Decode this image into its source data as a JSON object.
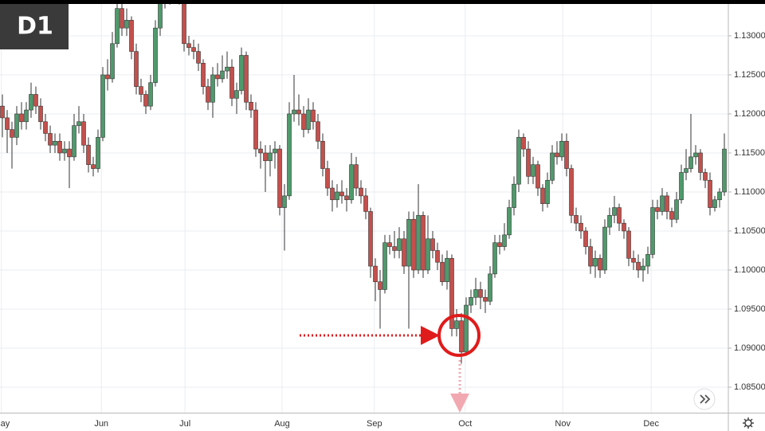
{
  "chart_data": {
    "type": "candlestick",
    "timeframe": "D1",
    "up_color": "#4f9a6b",
    "down_color": "#c4504c",
    "grid": true,
    "ylim": [
      1.08173,
      1.13459
    ],
    "yticks": [
      {
        "value": 1.085,
        "label": "1.08500"
      },
      {
        "value": 1.09,
        "label": "1.09000"
      },
      {
        "value": 1.095,
        "label": "1.09500"
      },
      {
        "value": 1.1,
        "label": "1.10000"
      },
      {
        "value": 1.105,
        "label": "1.10500"
      },
      {
        "value": 1.11,
        "label": "1.11000"
      },
      {
        "value": 1.115,
        "label": "1.11500"
      },
      {
        "value": 1.12,
        "label": "1.12000"
      },
      {
        "value": 1.125,
        "label": "1.12500"
      },
      {
        "value": 1.13,
        "label": "1.13000"
      }
    ],
    "xlim": [
      -0.5,
      151.5
    ],
    "xticks": [
      {
        "value": -0.2,
        "label": "May"
      },
      {
        "value": 20.7,
        "label": "Jun"
      },
      {
        "value": 38.2,
        "label": "Jul"
      },
      {
        "value": 58.5,
        "label": "Aug"
      },
      {
        "value": 77.8,
        "label": "Sep"
      },
      {
        "value": 96.8,
        "label": "Oct"
      },
      {
        "value": 117.2,
        "label": "Nov"
      },
      {
        "value": 135.7,
        "label": "Dec"
      }
    ],
    "ohlc": [
      [
        1.121,
        1.1225,
        1.117,
        1.1195
      ],
      [
        1.1195,
        1.1205,
        1.115,
        1.118
      ],
      [
        1.118,
        1.119,
        1.113,
        1.117
      ],
      [
        1.117,
        1.121,
        1.116,
        1.12
      ],
      [
        1.12,
        1.1215,
        1.118,
        1.119
      ],
      [
        1.119,
        1.1215,
        1.118,
        1.1205
      ],
      [
        1.1205,
        1.124,
        1.1195,
        1.1225
      ],
      [
        1.1225,
        1.1235,
        1.12,
        1.121
      ],
      [
        1.121,
        1.122,
        1.118,
        1.119
      ],
      [
        1.119,
        1.12,
        1.1165,
        1.1175
      ],
      [
        1.1175,
        1.1185,
        1.115,
        1.116
      ],
      [
        1.116,
        1.1175,
        1.115,
        1.1165
      ],
      [
        1.1165,
        1.1175,
        1.114,
        1.115
      ],
      [
        1.115,
        1.1165,
        1.114,
        1.1155
      ],
      [
        1.1155,
        1.1165,
        1.1105,
        1.1145
      ],
      [
        1.1145,
        1.12,
        1.114,
        1.1185
      ],
      [
        1.1185,
        1.121,
        1.1175,
        1.119
      ],
      [
        1.119,
        1.12,
        1.115,
        1.116
      ],
      [
        1.116,
        1.117,
        1.1125,
        1.1135
      ],
      [
        1.1135,
        1.1145,
        1.112,
        1.113
      ],
      [
        1.113,
        1.118,
        1.1125,
        1.117
      ],
      [
        1.117,
        1.126,
        1.1165,
        1.125
      ],
      [
        1.125,
        1.127,
        1.123,
        1.1245
      ],
      [
        1.1245,
        1.1305,
        1.124,
        1.129
      ],
      [
        1.129,
        1.1345,
        1.1285,
        1.1335
      ],
      [
        1.1335,
        1.1345,
        1.13,
        1.131
      ],
      [
        1.131,
        1.1335,
        1.13,
        1.132
      ],
      [
        1.132,
        1.1325,
        1.127,
        1.128
      ],
      [
        1.128,
        1.129,
        1.1225,
        1.1235
      ],
      [
        1.1235,
        1.1245,
        1.1215,
        1.1225
      ],
      [
        1.1225,
        1.123,
        1.12,
        1.121
      ],
      [
        1.121,
        1.125,
        1.1205,
        1.124
      ],
      [
        1.124,
        1.132,
        1.1235,
        1.131
      ],
      [
        1.131,
        1.136,
        1.13,
        1.1345
      ],
      [
        1.1345,
        1.1365,
        1.1335,
        1.135
      ],
      [
        1.135,
        1.137,
        1.134,
        1.136
      ],
      [
        1.136,
        1.137,
        1.1345,
        1.1355
      ],
      [
        1.1355,
        1.1365,
        1.134,
        1.1345
      ],
      [
        1.1345,
        1.1355,
        1.128,
        1.129
      ],
      [
        1.129,
        1.13,
        1.1275,
        1.1285
      ],
      [
        1.1285,
        1.1295,
        1.127,
        1.128
      ],
      [
        1.128,
        1.129,
        1.1255,
        1.1265
      ],
      [
        1.1265,
        1.127,
        1.1225,
        1.1235
      ],
      [
        1.1235,
        1.1245,
        1.1205,
        1.1215
      ],
      [
        1.1215,
        1.126,
        1.1195,
        1.125
      ],
      [
        1.125,
        1.1265,
        1.1235,
        1.1245
      ],
      [
        1.1245,
        1.1275,
        1.124,
        1.1255
      ],
      [
        1.1255,
        1.128,
        1.1245,
        1.126
      ],
      [
        1.126,
        1.127,
        1.121,
        1.122
      ],
      [
        1.122,
        1.124,
        1.12,
        1.123
      ],
      [
        1.123,
        1.1285,
        1.1225,
        1.1275
      ],
      [
        1.1275,
        1.128,
        1.1205,
        1.1215
      ],
      [
        1.1215,
        1.1225,
        1.1195,
        1.1205
      ],
      [
        1.1205,
        1.1215,
        1.1145,
        1.1155
      ],
      [
        1.1155,
        1.1165,
        1.113,
        1.115
      ],
      [
        1.115,
        1.116,
        1.11,
        1.114
      ],
      [
        1.114,
        1.116,
        1.112,
        1.115
      ],
      [
        1.115,
        1.1165,
        1.113,
        1.1155
      ],
      [
        1.1155,
        1.116,
        1.107,
        1.108
      ],
      [
        1.108,
        1.111,
        1.1025,
        1.1095
      ],
      [
        1.1095,
        1.1215,
        1.109,
        1.12
      ],
      [
        1.12,
        1.125,
        1.119,
        1.1205
      ],
      [
        1.1205,
        1.1225,
        1.1185,
        1.12
      ],
      [
        1.12,
        1.121,
        1.117,
        1.118
      ],
      [
        1.118,
        1.122,
        1.1175,
        1.1205
      ],
      [
        1.1205,
        1.1215,
        1.118,
        1.119
      ],
      [
        1.119,
        1.12,
        1.1155,
        1.1165
      ],
      [
        1.1165,
        1.1175,
        1.112,
        1.113
      ],
      [
        1.113,
        1.114,
        1.1095,
        1.1105
      ],
      [
        1.1105,
        1.1115,
        1.1075,
        1.109
      ],
      [
        1.109,
        1.111,
        1.108,
        1.11
      ],
      [
        1.11,
        1.1115,
        1.1085,
        1.1095
      ],
      [
        1.1095,
        1.1105,
        1.1075,
        1.109
      ],
      [
        1.109,
        1.115,
        1.1085,
        1.1135
      ],
      [
        1.1135,
        1.1145,
        1.1095,
        1.1105
      ],
      [
        1.1105,
        1.1115,
        1.1085,
        1.1095
      ],
      [
        1.1095,
        1.1105,
        1.1065,
        1.1075
      ],
      [
        1.1075,
        1.108,
        1.099,
        1.1005
      ],
      [
        1.1005,
        1.1015,
        1.096,
        1.0985
      ],
      [
        1.0985,
        1.1,
        1.0925,
        1.0975
      ],
      [
        1.0975,
        1.1045,
        1.097,
        1.1035
      ],
      [
        1.1035,
        1.1045,
        1.102,
        1.103
      ],
      [
        1.103,
        1.105,
        1.1015,
        1.1025
      ],
      [
        1.1025,
        1.1055,
        1.1015,
        1.104
      ],
      [
        1.104,
        1.105,
        1.0995,
        1.1005
      ],
      [
        1.1005,
        1.1075,
        1.0925,
        1.1065
      ],
      [
        1.1065,
        1.1075,
        1.099,
        1.1
      ],
      [
        1.1,
        1.111,
        1.0995,
        1.107
      ],
      [
        1.107,
        1.1075,
        1.099,
        1.1
      ],
      [
        1.1,
        1.107,
        1.0995,
        1.104
      ],
      [
        1.104,
        1.105,
        1.1015,
        1.1025
      ],
      [
        1.1025,
        1.1035,
        1.1,
        1.101
      ],
      [
        1.101,
        1.102,
        1.098,
        1.0985
      ],
      [
        1.0985,
        1.1025,
        1.0975,
        1.1015
      ],
      [
        1.1015,
        1.102,
        1.0915,
        1.0925
      ],
      [
        1.0925,
        1.095,
        1.0915,
        1.0935
      ],
      [
        1.0935,
        1.0945,
        1.088,
        1.0895
      ],
      [
        1.0895,
        1.0965,
        1.089,
        1.0955
      ],
      [
        1.0955,
        1.0975,
        1.0945,
        1.0965
      ],
      [
        1.0965,
        1.099,
        1.0955,
        1.0975
      ],
      [
        1.0975,
        1.0985,
        1.095,
        1.0965
      ],
      [
        1.0965,
        1.0975,
        1.0945,
        1.096
      ],
      [
        1.096,
        1.1005,
        1.0955,
        1.0995
      ],
      [
        1.0995,
        1.1045,
        1.099,
        1.1035
      ],
      [
        1.1035,
        1.1045,
        1.102,
        1.103
      ],
      [
        1.103,
        1.106,
        1.1025,
        1.1045
      ],
      [
        1.1045,
        1.109,
        1.104,
        1.108
      ],
      [
        1.108,
        1.112,
        1.107,
        1.111
      ],
      [
        1.111,
        1.118,
        1.11,
        1.117
      ],
      [
        1.117,
        1.1175,
        1.1145,
        1.1155
      ],
      [
        1.1155,
        1.1165,
        1.111,
        1.112
      ],
      [
        1.112,
        1.1145,
        1.111,
        1.1135
      ],
      [
        1.1135,
        1.114,
        1.1095,
        1.1105
      ],
      [
        1.1105,
        1.111,
        1.1075,
        1.1085
      ],
      [
        1.1085,
        1.1125,
        1.108,
        1.1115
      ],
      [
        1.1115,
        1.116,
        1.111,
        1.115
      ],
      [
        1.115,
        1.1165,
        1.1135,
        1.1145
      ],
      [
        1.1145,
        1.1175,
        1.114,
        1.1165
      ],
      [
        1.1165,
        1.1175,
        1.112,
        1.113
      ],
      [
        1.113,
        1.1135,
        1.106,
        1.107
      ],
      [
        1.107,
        1.108,
        1.105,
        1.106
      ],
      [
        1.106,
        1.107,
        1.104,
        1.105
      ],
      [
        1.105,
        1.1055,
        1.102,
        1.103
      ],
      [
        1.103,
        1.104,
        1.0995,
        1.1005
      ],
      [
        1.1005,
        1.1025,
        1.099,
        1.1015
      ],
      [
        1.1015,
        1.102,
        1.099,
        1.1
      ],
      [
        1.1,
        1.1065,
        1.0995,
        1.1055
      ],
      [
        1.1055,
        1.108,
        1.1045,
        1.107
      ],
      [
        1.107,
        1.1095,
        1.106,
        1.108
      ],
      [
        1.108,
        1.1085,
        1.105,
        1.106
      ],
      [
        1.106,
        1.1065,
        1.104,
        1.105
      ],
      [
        1.105,
        1.1055,
        1.1005,
        1.1015
      ],
      [
        1.1015,
        1.1025,
        1.1,
        1.101
      ],
      [
        1.101,
        1.102,
        1.099,
        1.1
      ],
      [
        1.1,
        1.1015,
        1.0985,
        1.1005
      ],
      [
        1.1005,
        1.103,
        1.0995,
        1.102
      ],
      [
        1.102,
        1.109,
        1.1015,
        1.108
      ],
      [
        1.108,
        1.109,
        1.1065,
        1.1075
      ],
      [
        1.1075,
        1.1105,
        1.107,
        1.1095
      ],
      [
        1.1095,
        1.11,
        1.1065,
        1.1075
      ],
      [
        1.1075,
        1.108,
        1.1055,
        1.1065
      ],
      [
        1.1065,
        1.11,
        1.106,
        1.109
      ],
      [
        1.109,
        1.1135,
        1.1085,
        1.1125
      ],
      [
        1.1125,
        1.1155,
        1.1115,
        1.113
      ],
      [
        1.113,
        1.12,
        1.1125,
        1.1145
      ],
      [
        1.1145,
        1.116,
        1.1135,
        1.115
      ],
      [
        1.115,
        1.1155,
        1.1115,
        1.1125
      ],
      [
        1.1125,
        1.113,
        1.1105,
        1.1115
      ],
      [
        1.1115,
        1.1125,
        1.107,
        1.108
      ],
      [
        1.108,
        1.1095,
        1.1075,
        1.109
      ],
      [
        1.109,
        1.1105,
        1.108,
        1.11
      ],
      [
        1.11,
        1.1175,
        1.1095,
        1.1155
      ]
    ]
  }
}
